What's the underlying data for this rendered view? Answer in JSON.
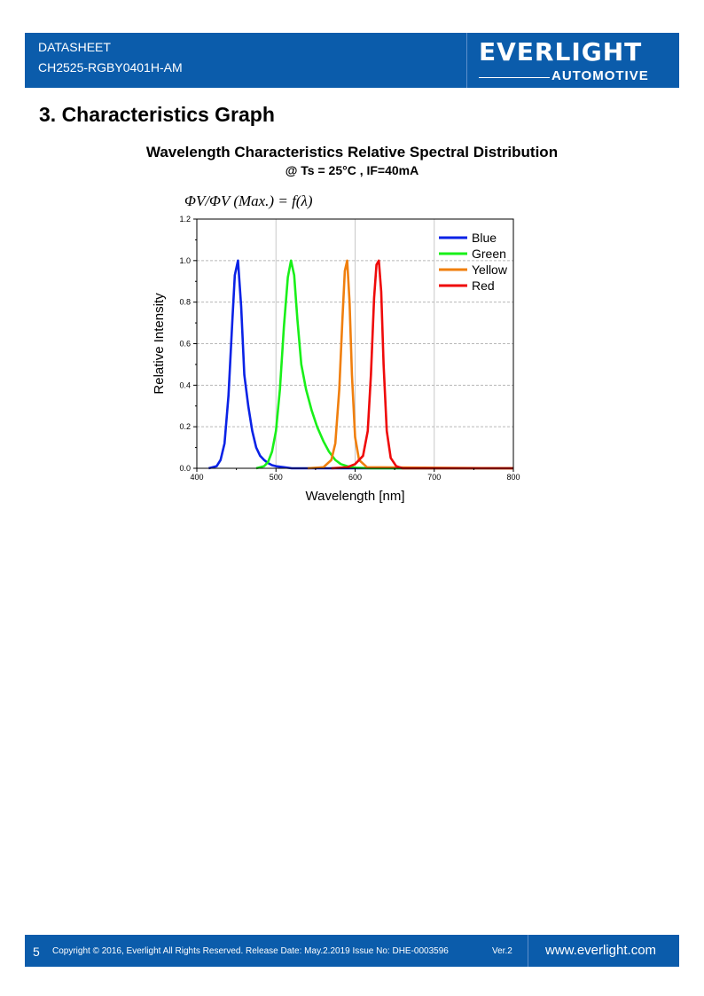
{
  "header": {
    "line1": "DATASHEET",
    "line2": "CH2525-RGBY0401H-AM",
    "logo_main": "EVERLIGHT",
    "logo_sub": "AUTOMOTIVE"
  },
  "section_title": "3. Characteristics Graph",
  "chart_data": {
    "type": "line",
    "title": "Wavelength Characteristics Relative Spectral Distribution",
    "subtitle": "@ Ts = 25°C , IF=40mA",
    "formula": "ΦV/ΦV (Max.) = f(λ)",
    "xlabel": "Wavelength [nm]",
    "ylabel": "Relative Intensity",
    "xlim": [
      400,
      800
    ],
    "ylim": [
      0,
      1.2
    ],
    "xticks": [
      400,
      500,
      600,
      700,
      800
    ],
    "yticks": [
      0.0,
      0.2,
      0.4,
      0.6,
      0.8,
      1.0,
      1.2
    ],
    "ytick_labels": [
      "0.0",
      "0.2",
      "0.4",
      "0.6",
      "0.8",
      "1.0",
      "1.2"
    ],
    "grid": true,
    "legend_position": "top-right",
    "series": [
      {
        "name": "Blue",
        "color": "#0a22e6",
        "x": [
          415,
          425,
          430,
          435,
          440,
          445,
          448,
          452,
          456,
          460,
          465,
          470,
          475,
          480,
          485,
          490,
          495,
          500,
          510,
          520,
          800
        ],
        "y": [
          0.0,
          0.01,
          0.04,
          0.12,
          0.35,
          0.72,
          0.93,
          1.0,
          0.78,
          0.45,
          0.3,
          0.18,
          0.1,
          0.06,
          0.04,
          0.025,
          0.015,
          0.01,
          0.005,
          0.0,
          0.0
        ]
      },
      {
        "name": "Green",
        "color": "#19f019",
        "x": [
          475,
          485,
          490,
          495,
          500,
          505,
          510,
          515,
          519,
          523,
          527,
          532,
          538,
          545,
          552,
          560,
          567,
          575,
          582,
          590,
          600,
          620,
          800
        ],
        "y": [
          0.0,
          0.01,
          0.03,
          0.08,
          0.18,
          0.38,
          0.68,
          0.92,
          1.0,
          0.93,
          0.72,
          0.5,
          0.38,
          0.28,
          0.2,
          0.13,
          0.08,
          0.04,
          0.02,
          0.01,
          0.003,
          0.0,
          0.0
        ]
      },
      {
        "name": "Yellow",
        "color": "#f07f0e",
        "x": [
          540,
          560,
          570,
          575,
          580,
          584,
          587,
          590,
          593,
          596,
          600,
          605,
          615,
          800
        ],
        "y": [
          0.0,
          0.005,
          0.04,
          0.12,
          0.38,
          0.72,
          0.95,
          1.0,
          0.8,
          0.45,
          0.15,
          0.04,
          0.005,
          0.0
        ]
      },
      {
        "name": "Red",
        "color": "#ef0a0a",
        "x": [
          570,
          590,
          600,
          610,
          616,
          620,
          624,
          627,
          630,
          633,
          636,
          640,
          645,
          652,
          660,
          800
        ],
        "y": [
          0.0,
          0.005,
          0.02,
          0.06,
          0.18,
          0.45,
          0.82,
          0.98,
          1.0,
          0.85,
          0.5,
          0.18,
          0.05,
          0.01,
          0.0,
          0.0
        ]
      }
    ]
  },
  "footer": {
    "page": "5",
    "copyright": "Copyright © 2016, Everlight All Rights Reserved. Release Date: May.2.2019 Issue No: DHE-0003596",
    "version": "Ver.2",
    "website": "www.everlight.com"
  }
}
